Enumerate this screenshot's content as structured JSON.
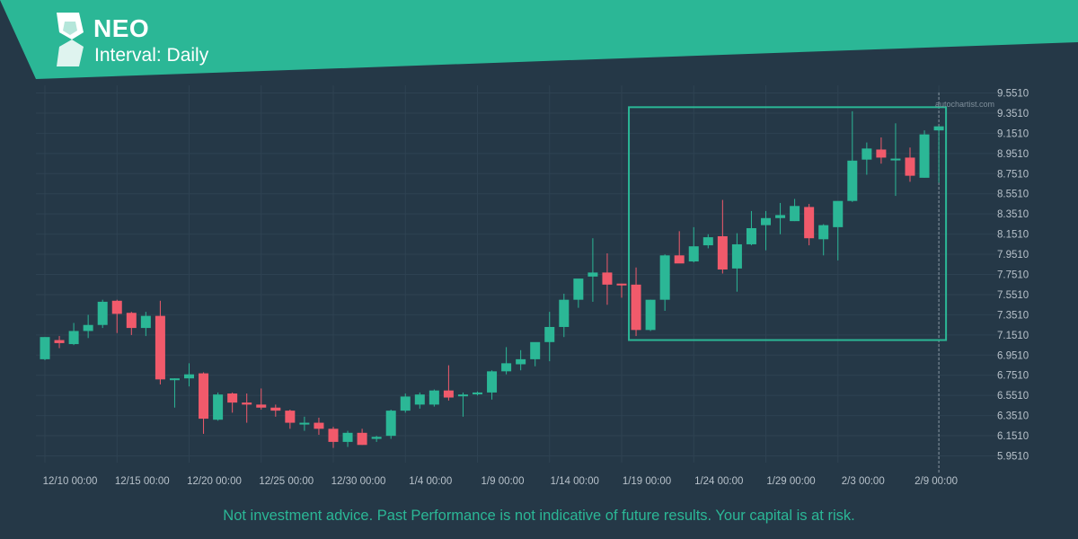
{
  "header": {
    "symbol": "NEO",
    "interval": "Interval: Daily",
    "accent_color": "#2bb796",
    "logo_icon": "autochartist-logo-icon"
  },
  "watermark": "autochartist.com",
  "disclaimer": "Not investment advice. Past Performance is not indicative of future results. Your capital is at risk.",
  "colors": {
    "background": "#253847",
    "up": "#2bb796",
    "down": "#f15a6b",
    "pattern_box": "#2bb796",
    "grid": "#2e4252"
  },
  "chart_data": {
    "type": "candlestick",
    "x_tick_labels": [
      "12/10 00:00",
      "12/15 00:00",
      "12/20 00:00",
      "12/25 00:00",
      "12/30 00:00",
      "1/4 00:00",
      "1/9 00:00",
      "1/14 00:00",
      "1/19 00:00",
      "1/24 00:00",
      "1/29 00:00",
      "2/3 00:00",
      "2/9 00:00"
    ],
    "y_tick_labels": [
      "9.5510",
      "9.3510",
      "9.1510",
      "8.9510",
      "8.7510",
      "8.5510",
      "8.3510",
      "8.1510",
      "7.9510",
      "7.7510",
      "7.5510",
      "7.3510",
      "7.1510",
      "6.9510",
      "6.7510",
      "6.5510",
      "6.3510",
      "6.1510",
      "5.9510"
    ],
    "ylim": [
      5.9,
      9.6
    ],
    "candles": [
      [
        6.91,
        7.13,
        6.9,
        7.13
      ],
      [
        7.1,
        7.14,
        7.02,
        7.07
      ],
      [
        7.06,
        7.27,
        7.05,
        7.19
      ],
      [
        7.19,
        7.35,
        7.12,
        7.25
      ],
      [
        7.25,
        7.5,
        7.22,
        7.48
      ],
      [
        7.49,
        7.5,
        7.17,
        7.36
      ],
      [
        7.37,
        7.38,
        7.15,
        7.22
      ],
      [
        7.22,
        7.38,
        7.14,
        7.34
      ],
      [
        7.34,
        7.49,
        6.66,
        6.71
      ],
      [
        6.71,
        6.72,
        6.43,
        6.72
      ],
      [
        6.72,
        6.87,
        6.64,
        6.76
      ],
      [
        6.77,
        6.78,
        6.17,
        6.32
      ],
      [
        6.31,
        6.58,
        6.3,
        6.56
      ],
      [
        6.57,
        6.58,
        6.38,
        6.48
      ],
      [
        6.48,
        6.57,
        6.28,
        6.46
      ],
      [
        6.46,
        6.62,
        6.41,
        6.43
      ],
      [
        6.43,
        6.46,
        6.34,
        6.4
      ],
      [
        6.4,
        6.41,
        6.22,
        6.28
      ],
      [
        6.28,
        6.34,
        6.2,
        6.28
      ],
      [
        6.28,
        6.33,
        6.16,
        6.22
      ],
      [
        6.22,
        6.24,
        6.03,
        6.09
      ],
      [
        6.09,
        6.2,
        6.04,
        6.18
      ],
      [
        6.18,
        6.22,
        6.06,
        6.06
      ],
      [
        6.12,
        6.15,
        6.09,
        6.14
      ],
      [
        6.15,
        6.41,
        6.12,
        6.4
      ],
      [
        6.4,
        6.57,
        6.38,
        6.54
      ],
      [
        6.46,
        6.58,
        6.42,
        6.56
      ],
      [
        6.46,
        6.61,
        6.44,
        6.6
      ],
      [
        6.6,
        6.85,
        6.5,
        6.53
      ],
      [
        6.55,
        6.58,
        6.34,
        6.56
      ],
      [
        6.57,
        6.59,
        6.55,
        6.58
      ],
      [
        6.58,
        6.8,
        6.51,
        6.79
      ],
      [
        6.79,
        7.03,
        6.76,
        6.87
      ],
      [
        6.86,
        7.0,
        6.8,
        6.91
      ],
      [
        6.91,
        7.07,
        6.84,
        7.08
      ],
      [
        7.08,
        7.38,
        6.89,
        7.23
      ],
      [
        7.23,
        7.56,
        7.13,
        7.5
      ],
      [
        7.5,
        7.68,
        7.42,
        7.71
      ],
      [
        7.73,
        8.11,
        7.48,
        7.77
      ],
      [
        7.77,
        7.96,
        7.45,
        7.65
      ],
      [
        7.66,
        7.66,
        7.52,
        7.65
      ],
      [
        7.65,
        7.82,
        7.14,
        7.2
      ],
      [
        7.2,
        7.5,
        7.19,
        7.5
      ],
      [
        7.5,
        7.95,
        7.39,
        7.94
      ],
      [
        7.94,
        8.18,
        7.87,
        7.86
      ],
      [
        7.88,
        8.22,
        7.87,
        8.03
      ],
      [
        8.04,
        8.15,
        8.01,
        8.12
      ],
      [
        8.13,
        8.49,
        7.76,
        7.8
      ],
      [
        7.81,
        8.16,
        7.58,
        8.05
      ],
      [
        8.05,
        8.38,
        8.04,
        8.21
      ],
      [
        8.24,
        8.38,
        7.99,
        8.31
      ],
      [
        8.31,
        8.46,
        8.15,
        8.34
      ],
      [
        8.28,
        8.5,
        8.28,
        8.43
      ],
      [
        8.42,
        8.45,
        8.04,
        8.11
      ],
      [
        8.1,
        8.25,
        7.94,
        8.24
      ],
      [
        8.22,
        8.47,
        7.89,
        8.48
      ],
      [
        8.48,
        9.37,
        8.47,
        8.88
      ],
      [
        8.89,
        9.06,
        8.74,
        9.0
      ],
      [
        8.99,
        9.11,
        8.85,
        8.91
      ],
      [
        8.9,
        9.25,
        8.53,
        8.9
      ],
      [
        8.91,
        9.01,
        8.67,
        8.73
      ],
      [
        8.71,
        9.18,
        8.71,
        9.14
      ],
      [
        9.18,
        9.2,
        8.66,
        9.22
      ]
    ],
    "pattern_box": {
      "x_start_index": 41,
      "x_end_index": 62,
      "y_top": 9.41,
      "y_bottom": 7.1
    },
    "current_time_line_index": 62
  }
}
